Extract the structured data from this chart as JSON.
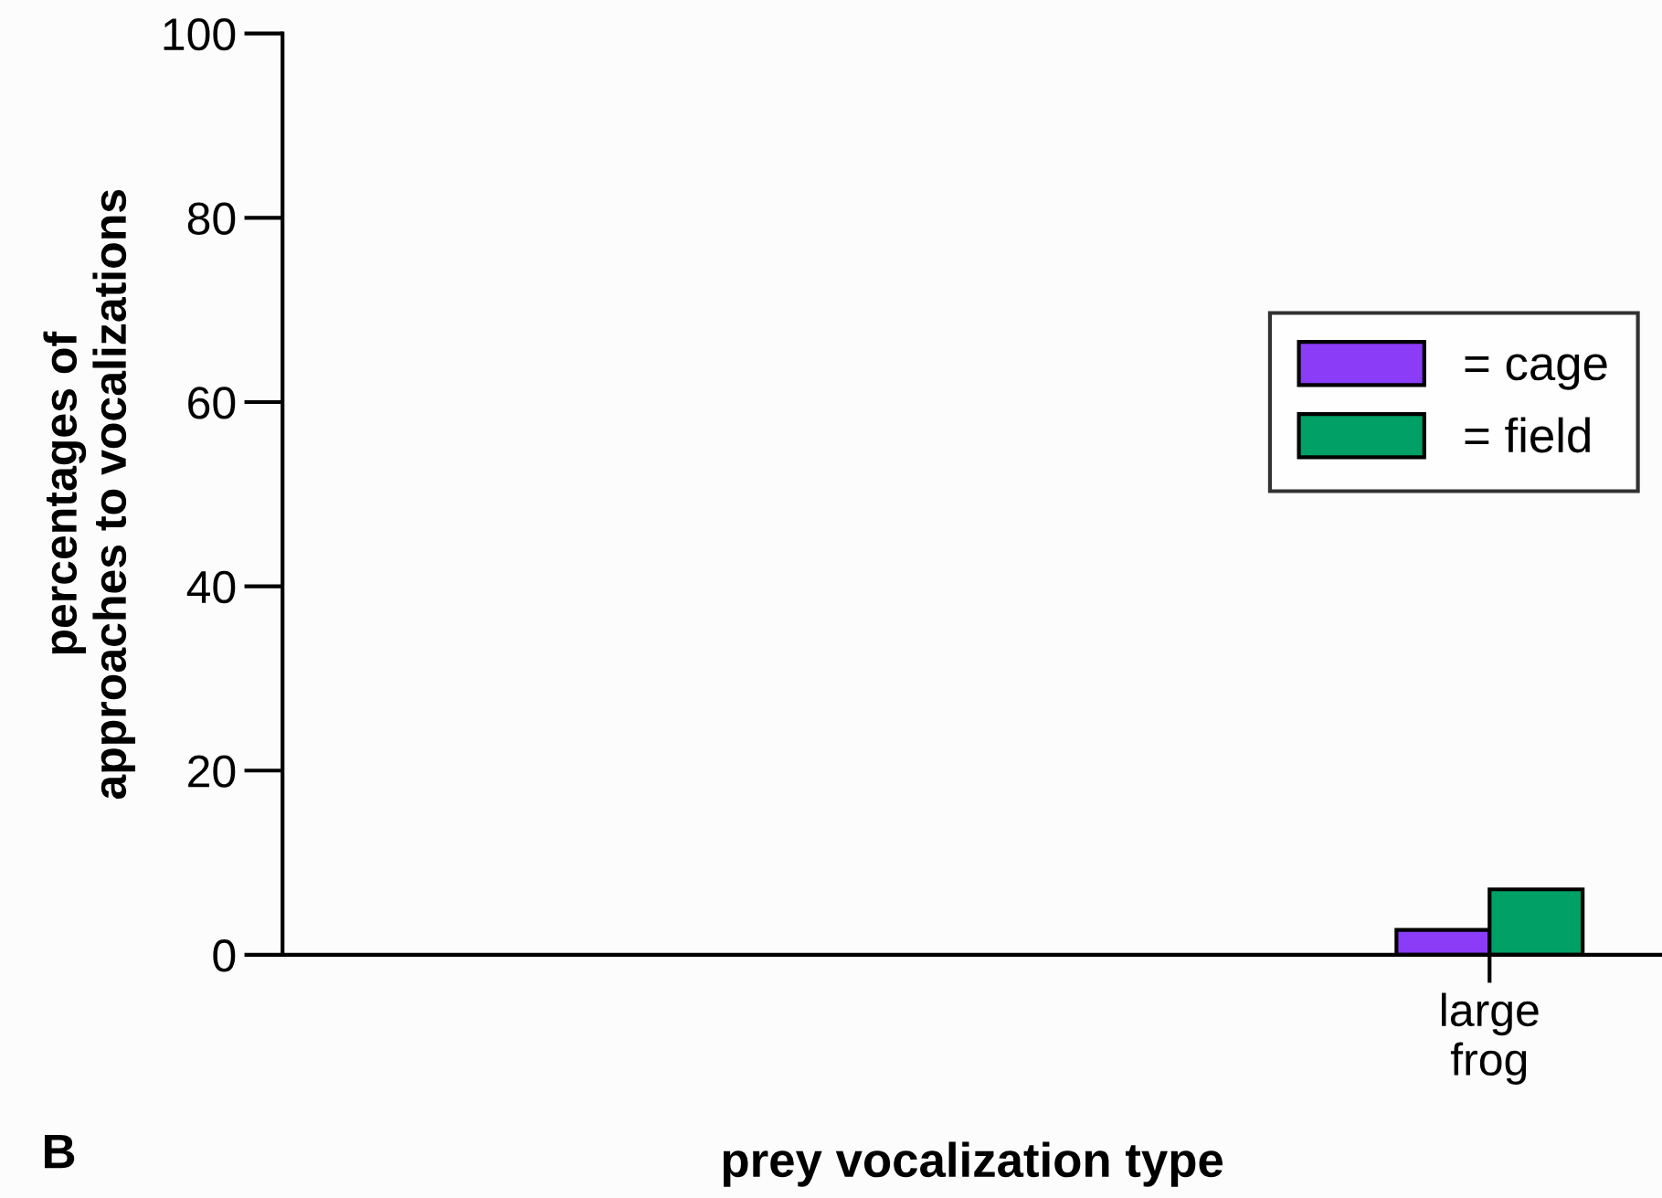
{
  "chart_data": {
    "type": "bar",
    "xlabel": "prey vocalization type",
    "ylabel": "percentages of\napproaches to vocalizations",
    "categories": [
      null,
      null,
      null,
      "large frog"
    ],
    "series": [
      {
        "name": "= cage",
        "color": "#8b3cf7",
        "values": [
          null,
          null,
          null,
          2.7
        ]
      },
      {
        "name": "= field",
        "color": "#00a066",
        "values": [
          null,
          null,
          null,
          7.1
        ]
      }
    ],
    "ylim": [
      0,
      100
    ],
    "yticks": [
      0,
      20,
      40,
      60,
      80,
      100
    ],
    "grid": false,
    "legend": "right",
    "annotations": [
      "B"
    ]
  }
}
